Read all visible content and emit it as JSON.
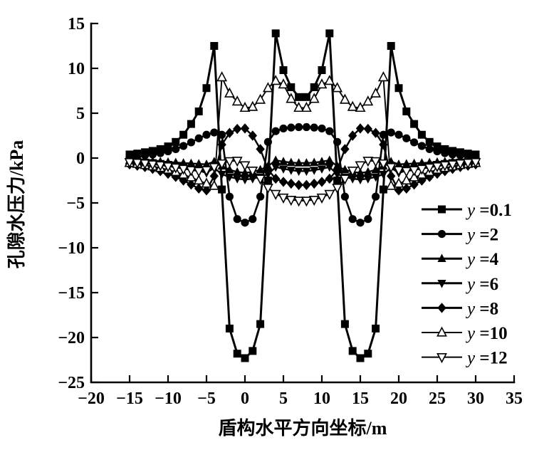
{
  "colors": {
    "foreground": "#000000",
    "background": "#ffffff"
  },
  "chart_data": {
    "type": "line",
    "title": "",
    "xlabel": "盾构水平方向坐标/m",
    "ylabel": "孔隙水压力/kPa",
    "xlim": [
      -20,
      35
    ],
    "ylim": [
      -25,
      15
    ],
    "grid": false,
    "legend_position": "inside lower right",
    "x_ticks": [
      -20,
      -15,
      -10,
      -5,
      0,
      5,
      10,
      15,
      20,
      25,
      30,
      35
    ],
    "x_tick_labels": [
      "−20",
      "−15",
      "−10",
      "−5",
      "0",
      "5",
      "10",
      "15",
      "20",
      "25",
      "30",
      "35"
    ],
    "y_ticks": [
      15,
      10,
      5,
      0,
      -5,
      -10,
      -15,
      -20,
      -25
    ],
    "y_tick_labels": [
      "15",
      "10",
      "5",
      "0",
      "−5",
      "−10",
      "−15",
      "−20",
      "−25"
    ],
    "x": [
      -15,
      -14,
      -13,
      -12,
      -11,
      -10,
      -9,
      -8,
      -7,
      -6,
      -5,
      -4,
      -3,
      -2,
      -1,
      0,
      1,
      2,
      3,
      4,
      5,
      6,
      7,
      8,
      9,
      10,
      11,
      12,
      13,
      14,
      15,
      16,
      17,
      18,
      19,
      20,
      21,
      22,
      23,
      24,
      25,
      26,
      27,
      28,
      29,
      30
    ],
    "series": [
      {
        "name": "y=0.1",
        "legend_var": "y",
        "legend_val": "=0.1",
        "marker": "square",
        "marker_fill": "filled",
        "line_width": 3,
        "values": [
          0.4,
          0.5,
          0.65,
          0.8,
          1.0,
          1.3,
          1.8,
          2.6,
          3.8,
          5.2,
          7.8,
          12.5,
          -3.5,
          -19.0,
          -21.8,
          -22.3,
          -21.5,
          -18.5,
          -2.5,
          13.9,
          9.8,
          7.9,
          6.8,
          6.8,
          7.9,
          9.8,
          13.9,
          -2.5,
          -18.5,
          -21.5,
          -22.3,
          -21.8,
          -19.0,
          -3.5,
          12.5,
          7.8,
          5.2,
          3.8,
          2.6,
          1.8,
          1.3,
          1.0,
          0.8,
          0.65,
          0.5,
          0.4
        ]
      },
      {
        "name": "y=2",
        "legend_var": "y",
        "legend_val": "=2",
        "marker": "circle",
        "marker_fill": "filled",
        "line_width": 2.6,
        "values": [
          0.15,
          0.2,
          0.3,
          0.4,
          0.55,
          0.75,
          1.0,
          1.35,
          1.75,
          2.2,
          2.6,
          2.85,
          2.6,
          -4.3,
          -6.8,
          -7.2,
          -6.8,
          -4.3,
          1.8,
          3.0,
          3.3,
          3.4,
          3.45,
          3.45,
          3.4,
          3.3,
          3.0,
          1.8,
          -4.3,
          -6.8,
          -7.2,
          -6.8,
          -4.3,
          2.6,
          2.85,
          2.6,
          2.2,
          1.75,
          1.35,
          1.0,
          0.75,
          0.55,
          0.4,
          0.3,
          0.2,
          0.15
        ]
      },
      {
        "name": "y=4",
        "legend_var": "y",
        "legend_val": "=4",
        "marker": "triangle-up",
        "marker_fill": "filled",
        "line_width": 2.4,
        "values": [
          -0.25,
          -0.28,
          -0.3,
          -0.35,
          -0.4,
          -0.45,
          -0.5,
          -0.55,
          -0.6,
          -0.65,
          -0.7,
          -0.4,
          -0.9,
          -1.3,
          -1.55,
          -1.65,
          -1.55,
          -1.3,
          -0.9,
          -0.25,
          -0.4,
          -0.5,
          -0.55,
          -0.55,
          -0.5,
          -0.4,
          -0.25,
          -0.9,
          -1.3,
          -1.55,
          -1.65,
          -1.55,
          -1.3,
          -0.9,
          -0.4,
          -0.7,
          -0.65,
          -0.6,
          -0.55,
          -0.5,
          -0.45,
          -0.4,
          -0.35,
          -0.3,
          -0.28,
          -0.25
        ]
      },
      {
        "name": "y=6",
        "legend_var": "y",
        "legend_val": "=6",
        "marker": "triangle-down",
        "marker_fill": "filled",
        "line_width": 2.4,
        "values": [
          -0.35,
          -0.4,
          -0.45,
          -0.5,
          -0.6,
          -0.7,
          -0.85,
          -1.0,
          -1.2,
          -1.4,
          -1.65,
          -1.1,
          -1.8,
          -2.1,
          -2.3,
          -2.4,
          -2.3,
          -2.1,
          -1.8,
          -1.0,
          -1.2,
          -1.35,
          -1.45,
          -1.45,
          -1.35,
          -1.2,
          -1.0,
          -1.8,
          -2.1,
          -2.3,
          -2.4,
          -2.3,
          -2.1,
          -1.8,
          -1.1,
          -1.65,
          -1.4,
          -1.2,
          -1.0,
          -0.85,
          -0.7,
          -0.6,
          -0.5,
          -0.45,
          -0.4,
          -0.35
        ]
      },
      {
        "name": "y=8",
        "legend_var": "y",
        "legend_val": "=8",
        "marker": "diamond",
        "marker_fill": "filled",
        "line_width": 2.4,
        "values": [
          -0.7,
          -0.85,
          -1.0,
          -1.2,
          -1.45,
          -1.75,
          -2.1,
          -2.5,
          -2.95,
          -3.4,
          -3.6,
          -2.0,
          1.5,
          2.8,
          3.25,
          3.3,
          2.5,
          1.0,
          -1.3,
          -2.3,
          -2.65,
          -2.85,
          -3.0,
          -3.0,
          -2.85,
          -2.65,
          -2.3,
          -1.3,
          1.0,
          2.5,
          3.3,
          3.25,
          2.8,
          1.5,
          -2.0,
          -3.6,
          -3.4,
          -2.95,
          -2.5,
          -2.1,
          -1.75,
          -1.45,
          -1.2,
          -1.0,
          -0.85,
          -0.7
        ]
      },
      {
        "name": "y=10",
        "legend_var": "y",
        "legend_val": "=10",
        "marker": "triangle-up",
        "marker_fill": "open",
        "line_width": 1.9,
        "values": [
          -0.55,
          -0.65,
          -0.78,
          -0.92,
          -1.1,
          -1.3,
          -1.55,
          -1.85,
          -2.15,
          -2.5,
          -2.85,
          -3.1,
          9.0,
          7.2,
          6.3,
          5.6,
          5.7,
          6.5,
          7.8,
          8.6,
          8.2,
          6.6,
          5.6,
          5.6,
          6.6,
          8.2,
          8.6,
          7.8,
          6.5,
          5.7,
          5.6,
          6.3,
          7.2,
          9.0,
          -3.1,
          -2.85,
          -2.5,
          -2.15,
          -1.85,
          -1.55,
          -1.3,
          -1.1,
          -0.92,
          -0.78,
          -0.65,
          -0.55
        ]
      },
      {
        "name": "y=12",
        "legend_var": "y",
        "legend_val": "=12",
        "marker": "triangle-down",
        "marker_fill": "open",
        "line_width": 1.9,
        "values": [
          -0.45,
          -0.52,
          -0.6,
          -0.7,
          -0.8,
          -0.92,
          -1.05,
          -1.2,
          -1.35,
          -1.45,
          -1.35,
          -1.0,
          -0.6,
          -0.35,
          -0.3,
          -0.8,
          -1.4,
          -2.3,
          -3.3,
          -4.0,
          -4.4,
          -4.65,
          -4.75,
          -4.75,
          -4.65,
          -4.4,
          -4.0,
          -3.3,
          -2.3,
          -1.4,
          -0.8,
          -0.3,
          -0.35,
          -0.6,
          -1.0,
          -1.35,
          -1.45,
          -1.35,
          -1.2,
          -1.05,
          -0.92,
          -0.8,
          -0.7,
          -0.6,
          -0.52,
          -0.45
        ]
      }
    ]
  }
}
